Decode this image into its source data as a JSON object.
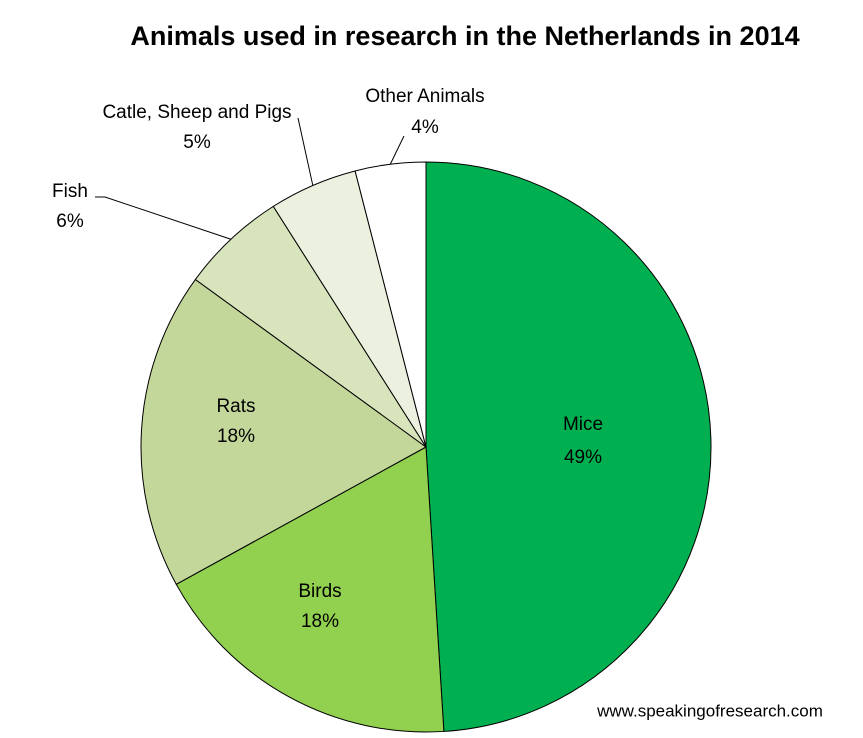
{
  "chart_data": {
    "type": "pie",
    "title": "Animals used in research in the Netherlands in 2014",
    "categories": [
      "Mice",
      "Birds",
      "Rats",
      "Fish",
      "Catle, Sheep and Pigs",
      "Other Animals"
    ],
    "values": [
      49,
      18,
      18,
      6,
      5,
      4
    ],
    "value_labels": [
      "49%",
      "18%",
      "18%",
      "6%",
      "5%",
      "4%"
    ],
    "colors": [
      "#00b050",
      "#92d050",
      "#c4d79b",
      "#d8e4bc",
      "#ebf1de",
      "#ffffff"
    ],
    "source": "www.speakingofresearch.com"
  }
}
